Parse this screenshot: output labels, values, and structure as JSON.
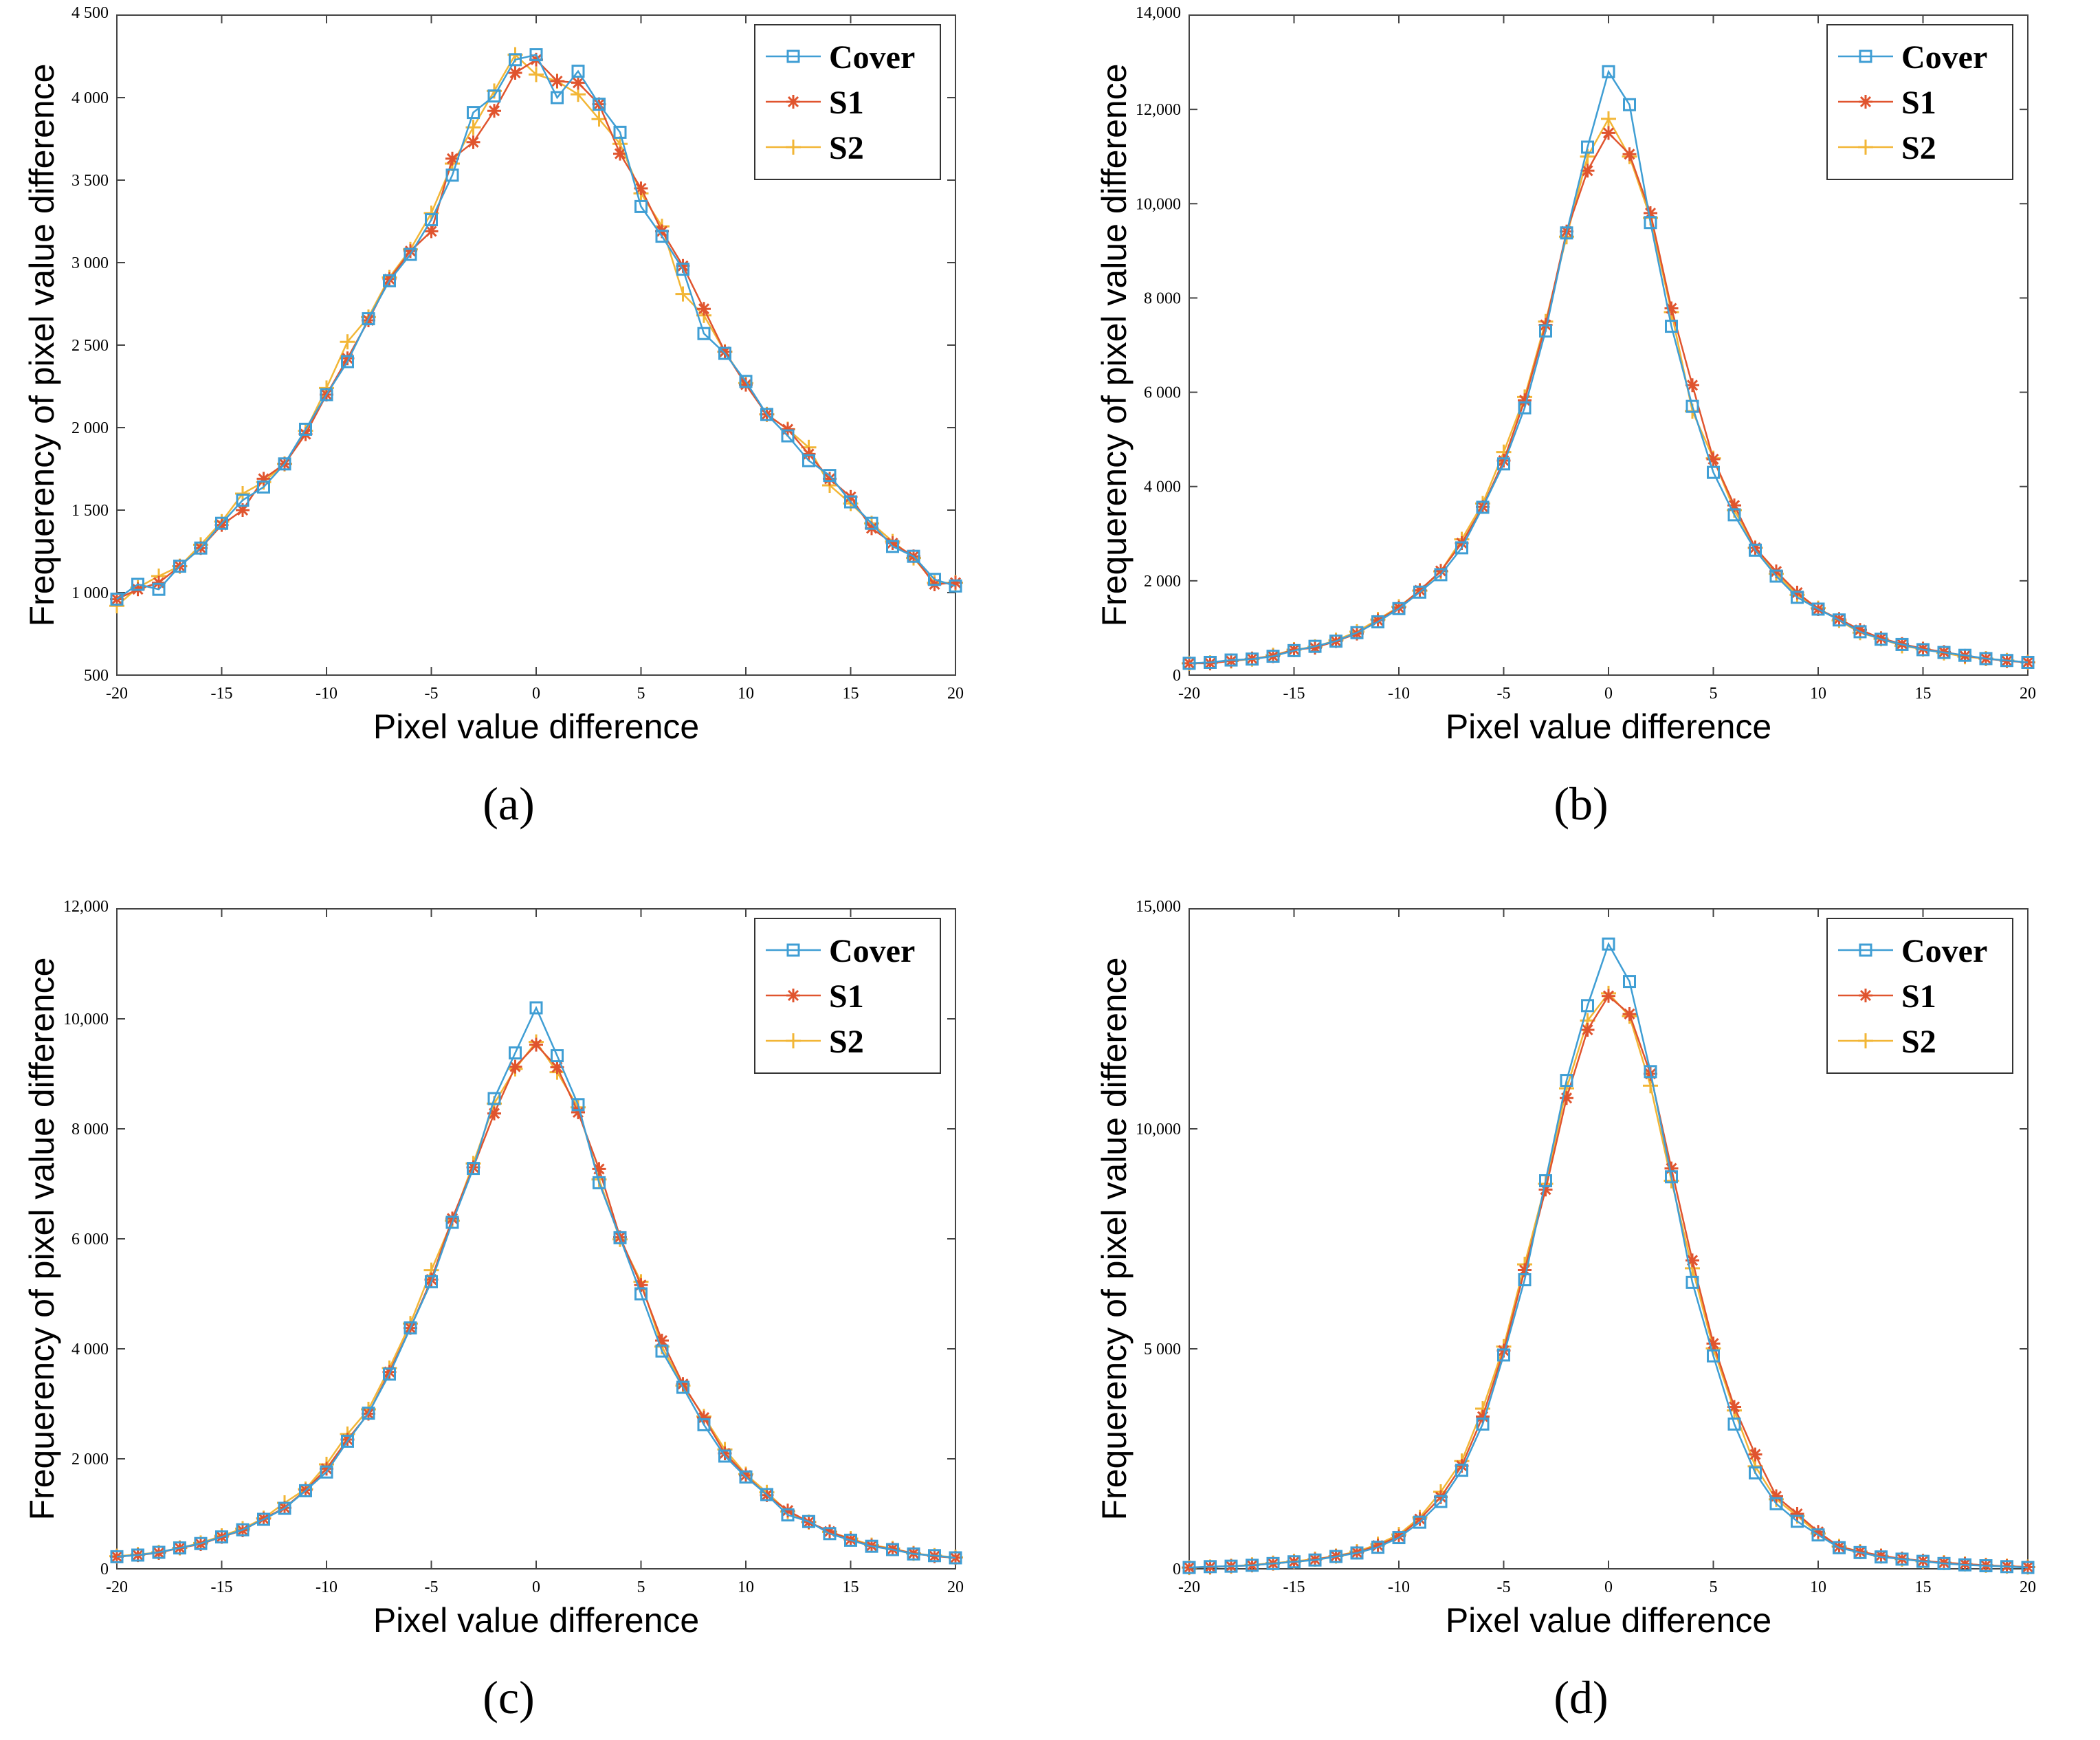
{
  "colors": {
    "Cover": "#3f9ed4",
    "S1": "#e0542e",
    "S2": "#f2b636"
  },
  "chart_data": [
    {
      "type": "line",
      "panel_label": "(a)",
      "xlabel": "Pixel value difference",
      "ylabel": "Frequerency of pixel value difference",
      "xlim": [
        -20,
        20
      ],
      "ylim": [
        500,
        4500
      ],
      "xticks": [
        -20,
        -15,
        -10,
        -5,
        0,
        5,
        10,
        15,
        20
      ],
      "xtick_labels": [
        "-20",
        "-15",
        "-10",
        "-5",
        "0",
        "5",
        "10",
        "15",
        "20"
      ],
      "yticks": [
        500,
        1000,
        1500,
        2000,
        2500,
        3000,
        3500,
        4000,
        4500
      ],
      "ytick_labels": [
        "500",
        "1 000",
        "1 500",
        "2 000",
        "2 500",
        "3 000",
        "3 500",
        "4 000",
        "4 500"
      ],
      "legend": [
        "Cover",
        "S1",
        "S2"
      ],
      "legend_position": "top-right",
      "x": [
        -20,
        -19,
        -18,
        -17,
        -16,
        -15,
        -14,
        -13,
        -12,
        -11,
        -10,
        -9,
        -8,
        -7,
        -6,
        -5,
        -4,
        -3,
        -2,
        -1,
        0,
        1,
        2,
        3,
        4,
        5,
        6,
        7,
        8,
        9,
        10,
        11,
        12,
        13,
        14,
        15,
        16,
        17,
        18,
        19,
        20
      ],
      "series": [
        {
          "name": "Cover",
          "values": [
            960,
            1050,
            1020,
            1160,
            1270,
            1420,
            1560,
            1640,
            1780,
            1990,
            2200,
            2400,
            2660,
            2890,
            3050,
            3260,
            3530,
            3910,
            4010,
            4230,
            4260,
            4000,
            4160,
            3960,
            3790,
            3340,
            3160,
            2960,
            2570,
            2450,
            2280,
            2080,
            1950,
            1800,
            1710,
            1550,
            1420,
            1280,
            1220,
            1080,
            1040
          ]
        },
        {
          "name": "S1",
          "values": [
            960,
            1020,
            1060,
            1160,
            1270,
            1410,
            1500,
            1690,
            1780,
            1960,
            2200,
            2420,
            2650,
            2900,
            3070,
            3190,
            3630,
            3730,
            3920,
            4150,
            4230,
            4100,
            4090,
            3960,
            3660,
            3450,
            3190,
            2980,
            2720,
            2460,
            2260,
            2080,
            1990,
            1840,
            1690,
            1580,
            1390,
            1300,
            1220,
            1050,
            1060
          ]
        },
        {
          "name": "S2",
          "values": [
            920,
            1030,
            1100,
            1160,
            1290,
            1430,
            1600,
            1670,
            1780,
            1980,
            2240,
            2520,
            2670,
            2910,
            3080,
            3300,
            3600,
            3820,
            4040,
            4260,
            4140,
            4100,
            4020,
            3870,
            3720,
            3420,
            3220,
            2810,
            2680,
            2460,
            2270,
            2080,
            1990,
            1880,
            1650,
            1540,
            1420,
            1310,
            1210,
            1060,
            1060
          ]
        }
      ]
    },
    {
      "type": "line",
      "panel_label": "(b)",
      "xlabel": "Pixel value difference",
      "ylabel": "Frequerency of pixel value difference",
      "xlim": [
        -20,
        20
      ],
      "ylim": [
        0,
        14000
      ],
      "xticks": [
        -20,
        -15,
        -10,
        -5,
        0,
        5,
        10,
        15,
        20
      ],
      "xtick_labels": [
        "-20",
        "-15",
        "-10",
        "-5",
        "0",
        "5",
        "10",
        "15",
        "20"
      ],
      "yticks": [
        0,
        2000,
        4000,
        6000,
        8000,
        10000,
        12000,
        14000
      ],
      "ytick_labels": [
        "0",
        "2 000",
        "4 000",
        "6 000",
        "8 000",
        "10,000",
        "12,000",
        "14,000"
      ],
      "legend": [
        "Cover",
        "S1",
        "S2"
      ],
      "legend_position": "top-right",
      "x": [
        -20,
        -19,
        -18,
        -17,
        -16,
        -15,
        -14,
        -13,
        -12,
        -11,
        -10,
        -9,
        -8,
        -7,
        -6,
        -5,
        -4,
        -3,
        -2,
        -1,
        0,
        1,
        2,
        3,
        4,
        5,
        6,
        7,
        8,
        9,
        10,
        11,
        12,
        13,
        14,
        15,
        16,
        17,
        18,
        19,
        20
      ],
      "series": [
        {
          "name": "Cover",
          "values": [
            250,
            270,
            320,
            340,
            400,
            520,
            610,
            720,
            900,
            1130,
            1410,
            1760,
            2130,
            2700,
            3560,
            4480,
            5670,
            7300,
            9380,
            11200,
            12800,
            12100,
            9600,
            7400,
            5700,
            4300,
            3400,
            2650,
            2100,
            1650,
            1400,
            1170,
            920,
            760,
            650,
            540,
            480,
            420,
            350,
            310,
            270
          ]
        },
        {
          "name": "S1",
          "values": [
            250,
            250,
            300,
            350,
            400,
            540,
            580,
            720,
            880,
            1160,
            1430,
            1800,
            2210,
            2800,
            3570,
            4550,
            5830,
            7430,
            9410,
            10700,
            11500,
            11050,
            9800,
            7780,
            6150,
            4580,
            3600,
            2700,
            2200,
            1750,
            1400,
            1190,
            960,
            780,
            660,
            560,
            490,
            410,
            350,
            300,
            270
          ]
        },
        {
          "name": "S2",
          "values": [
            250,
            260,
            300,
            340,
            420,
            540,
            600,
            740,
            920,
            1180,
            1450,
            1790,
            2200,
            2880,
            3640,
            4730,
            5900,
            7500,
            9300,
            11000,
            11800,
            11000,
            9700,
            7700,
            5600,
            4600,
            3500,
            2700,
            2150,
            1700,
            1420,
            1160,
            900,
            770,
            620,
            550,
            470,
            390,
            350,
            310,
            270
          ]
        }
      ]
    },
    {
      "type": "line",
      "panel_label": "(c)",
      "xlabel": "Pixel value difference",
      "ylabel": "Frequerency of pixel value difference",
      "xlim": [
        -20,
        20
      ],
      "ylim": [
        0,
        12000
      ],
      "xticks": [
        -20,
        -15,
        -10,
        -5,
        0,
        5,
        10,
        15,
        20
      ],
      "xtick_labels": [
        "-20",
        "-15",
        "-10",
        "-5",
        "0",
        "5",
        "10",
        "15",
        "20"
      ],
      "yticks": [
        0,
        2000,
        4000,
        6000,
        8000,
        10000,
        12000
      ],
      "ytick_labels": [
        "0",
        "2 000",
        "4 000",
        "6 000",
        "8 000",
        "10,000",
        "12,000"
      ],
      "legend": [
        "Cover",
        "S1",
        "S2"
      ],
      "legend_position": "top-right",
      "x": [
        -20,
        -19,
        -18,
        -17,
        -16,
        -15,
        -14,
        -13,
        -12,
        -11,
        -10,
        -9,
        -8,
        -7,
        -6,
        -5,
        -4,
        -3,
        -2,
        -1,
        0,
        1,
        2,
        3,
        4,
        5,
        6,
        7,
        8,
        9,
        10,
        11,
        12,
        13,
        14,
        15,
        16,
        17,
        18,
        19,
        20
      ],
      "series": [
        {
          "name": "Cover",
          "values": [
            220,
            250,
            300,
            380,
            460,
            580,
            710,
            900,
            1100,
            1420,
            1760,
            2320,
            2830,
            3540,
            4380,
            5220,
            6300,
            7280,
            8550,
            9380,
            10200,
            9330,
            8440,
            7020,
            6020,
            5000,
            3960,
            3300,
            2620,
            2050,
            1670,
            1350,
            980,
            860,
            640,
            520,
            410,
            350,
            270,
            240,
            200
          ]
        },
        {
          "name": "S1",
          "values": [
            220,
            250,
            290,
            380,
            450,
            580,
            700,
            910,
            1110,
            1430,
            1820,
            2350,
            2820,
            3580,
            4380,
            5260,
            6370,
            7300,
            8280,
            9130,
            9530,
            9120,
            8300,
            7270,
            6030,
            5160,
            4150,
            3360,
            2750,
            2100,
            1700,
            1340,
            1060,
            850,
            680,
            530,
            420,
            360,
            280,
            230,
            200
          ]
        },
        {
          "name": "S2",
          "values": [
            230,
            260,
            300,
            380,
            470,
            600,
            730,
            920,
            1200,
            1450,
            1900,
            2450,
            2900,
            3650,
            4460,
            5430,
            6330,
            7370,
            8460,
            9090,
            9580,
            9030,
            8390,
            7080,
            5990,
            5220,
            4040,
            3330,
            2770,
            2170,
            1720,
            1390,
            1040,
            850,
            670,
            550,
            430,
            370,
            280,
            240,
            210
          ]
        }
      ]
    },
    {
      "type": "line",
      "panel_label": "(d)",
      "xlabel": "Pixel value difference",
      "ylabel": "Frequerency of pixel value difference",
      "xlim": [
        -20,
        20
      ],
      "ylim": [
        0,
        15000
      ],
      "xticks": [
        -20,
        -15,
        -10,
        -5,
        0,
        5,
        10,
        15,
        20
      ],
      "xtick_labels": [
        "-20",
        "-15",
        "-10",
        "-5",
        "0",
        "5",
        "10",
        "15",
        "20"
      ],
      "yticks": [
        0,
        5000,
        10000,
        15000
      ],
      "ytick_labels": [
        "0",
        "5 000",
        "10,000",
        "15,000"
      ],
      "legend": [
        "Cover",
        "S1",
        "S2"
      ],
      "legend_position": "top-right",
      "x": [
        -20,
        -19,
        -18,
        -17,
        -16,
        -15,
        -14,
        -13,
        -12,
        -11,
        -10,
        -9,
        -8,
        -7,
        -6,
        -5,
        -4,
        -3,
        -2,
        -1,
        0,
        1,
        2,
        3,
        4,
        5,
        6,
        7,
        8,
        9,
        10,
        11,
        12,
        13,
        14,
        15,
        16,
        17,
        18,
        19,
        20
      ],
      "series": [
        {
          "name": "Cover",
          "values": [
            30,
            50,
            60,
            80,
            120,
            160,
            200,
            280,
            360,
            490,
            710,
            1060,
            1530,
            2240,
            3290,
            4860,
            6570,
            8820,
            11100,
            12800,
            14200,
            13350,
            11300,
            8910,
            6510,
            4840,
            3290,
            2180,
            1480,
            1080,
            770,
            480,
            370,
            270,
            220,
            170,
            120,
            90,
            70,
            50,
            30
          ]
        },
        {
          "name": "S1",
          "values": [
            30,
            40,
            60,
            80,
            120,
            160,
            210,
            290,
            370,
            530,
            740,
            1130,
            1630,
            2340,
            3460,
            4960,
            6790,
            8620,
            10700,
            12250,
            13020,
            12610,
            11250,
            9100,
            7010,
            5120,
            3680,
            2600,
            1650,
            1250,
            840,
            500,
            390,
            300,
            230,
            180,
            140,
            110,
            80,
            60,
            40
          ]
        },
        {
          "name": "S2",
          "values": [
            30,
            40,
            60,
            90,
            130,
            170,
            220,
            290,
            390,
            560,
            780,
            1170,
            1750,
            2450,
            3640,
            5050,
            6920,
            8750,
            10920,
            12460,
            13080,
            12560,
            10980,
            8820,
            6830,
            5010,
            3600,
            2330,
            1580,
            1200,
            800,
            510,
            390,
            290,
            220,
            170,
            140,
            110,
            80,
            60,
            40
          ]
        }
      ]
    }
  ]
}
